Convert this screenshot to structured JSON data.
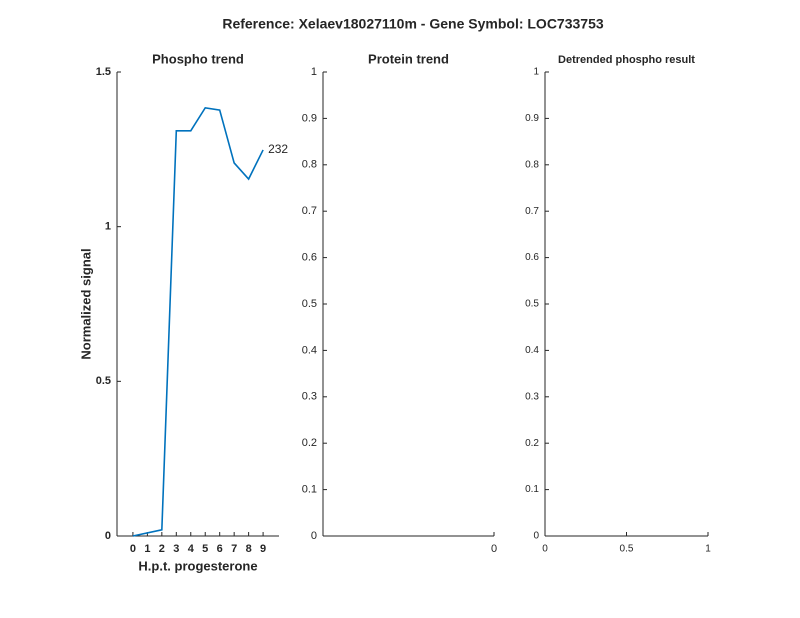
{
  "title": "Reference:  Xelaev18027110m - Gene Symbol:  LOC733753",
  "chart_data": [
    {
      "type": "line",
      "title": "Phospho trend",
      "xlabel": "H.p.t. progesterone",
      "ylabel": "Normalized signal",
      "x": [
        0,
        2,
        3,
        4,
        5,
        6,
        7,
        8,
        9
      ],
      "series": [
        {
          "name": "232",
          "color": "#0072bd",
          "values": [
            0,
            0.02,
            1.31,
            1.31,
            1.384,
            1.377,
            1.206,
            1.154,
            1.248
          ]
        }
      ],
      "xlim": [
        -1.1,
        10.1
      ],
      "xticks": [
        0,
        1,
        2,
        3,
        4,
        5,
        6,
        7,
        8,
        9
      ],
      "ylim": [
        0,
        1.5
      ],
      "yticks": [
        0,
        0.5,
        1,
        1.5
      ]
    },
    {
      "type": "line",
      "title": "Protein trend",
      "series": [],
      "xlim": [
        -1,
        0
      ],
      "xticks": [
        0
      ],
      "ylim": [
        0,
        1
      ],
      "yticks": [
        0,
        0.1,
        0.2,
        0.3,
        0.4,
        0.5,
        0.6,
        0.7,
        0.8,
        0.9,
        1
      ]
    },
    {
      "type": "line",
      "title": "Detrended phospho result",
      "series": [],
      "xlim": [
        0,
        1
      ],
      "xticks": [
        0,
        0.5,
        1
      ],
      "ylim": [
        0,
        1
      ],
      "yticks": [
        0,
        0.1,
        0.2,
        0.3,
        0.4,
        0.5,
        0.6,
        0.7,
        0.8,
        0.9,
        1
      ]
    }
  ]
}
